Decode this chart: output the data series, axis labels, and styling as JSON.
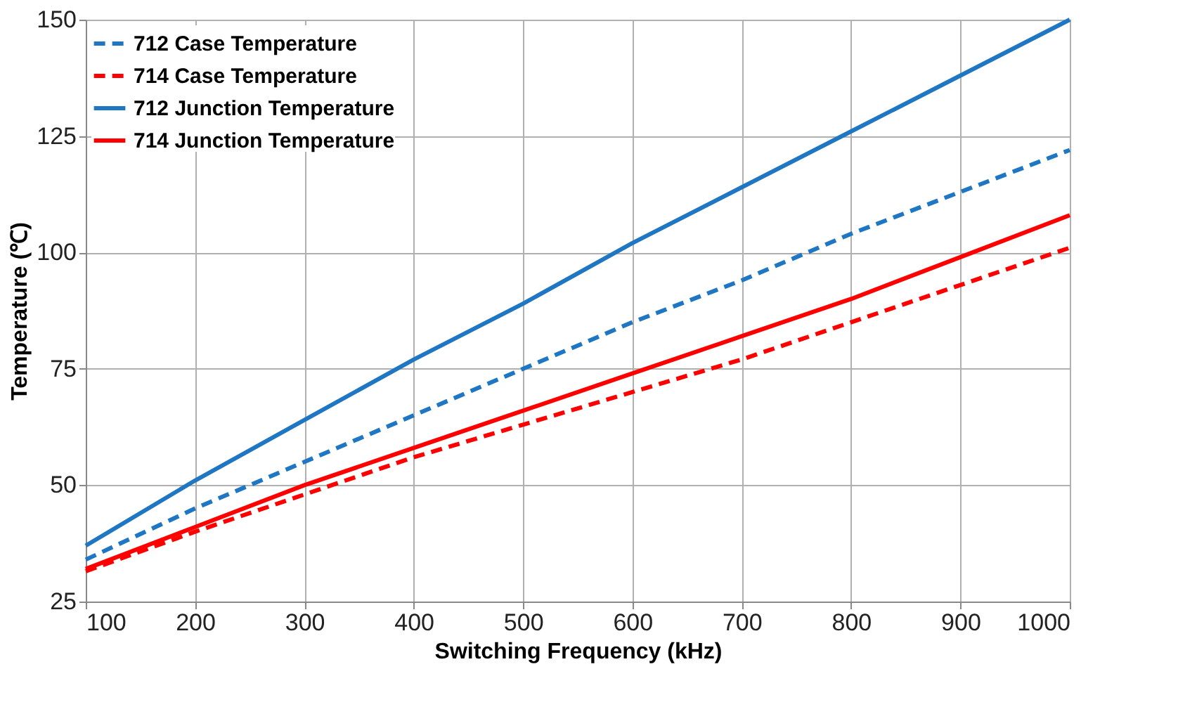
{
  "chart_data": {
    "type": "line",
    "xlabel": "Switching Frequency (kHz)",
    "ylabel": "Temperature (℃)",
    "x": [
      100,
      200,
      300,
      400,
      500,
      600,
      700,
      800,
      900,
      1000
    ],
    "xlim": [
      100,
      1000
    ],
    "xticks": [
      100,
      200,
      300,
      400,
      500,
      600,
      700,
      800,
      900,
      1000
    ],
    "ylim": [
      25,
      150
    ],
    "yticks": [
      25,
      50,
      75,
      100,
      125,
      150
    ],
    "grid": true,
    "legend": "top left",
    "marker": "none",
    "series": [
      {
        "name": "712 Case Temperature",
        "color": "#1f77c4",
        "line_style": "dashed",
        "values": [
          34,
          45,
          55,
          65,
          75,
          85,
          94,
          104,
          113,
          122
        ]
      },
      {
        "name": "714 Case Temperature",
        "color": "#ff0000",
        "line_style": "dashed",
        "values": [
          31.5,
          40,
          48,
          56,
          63,
          70,
          77,
          85,
          93,
          101
        ]
      },
      {
        "name": "712 Junction Temperature",
        "color": "#1f77c4",
        "line_style": "solid",
        "values": [
          37,
          51,
          64,
          77,
          89,
          102,
          114,
          126,
          138,
          150
        ]
      },
      {
        "name": "714 Junction Temperature",
        "color": "#ff0000",
        "line_style": "solid",
        "values": [
          32,
          41,
          50,
          58,
          66,
          74,
          82,
          90,
          99,
          108
        ]
      }
    ]
  }
}
